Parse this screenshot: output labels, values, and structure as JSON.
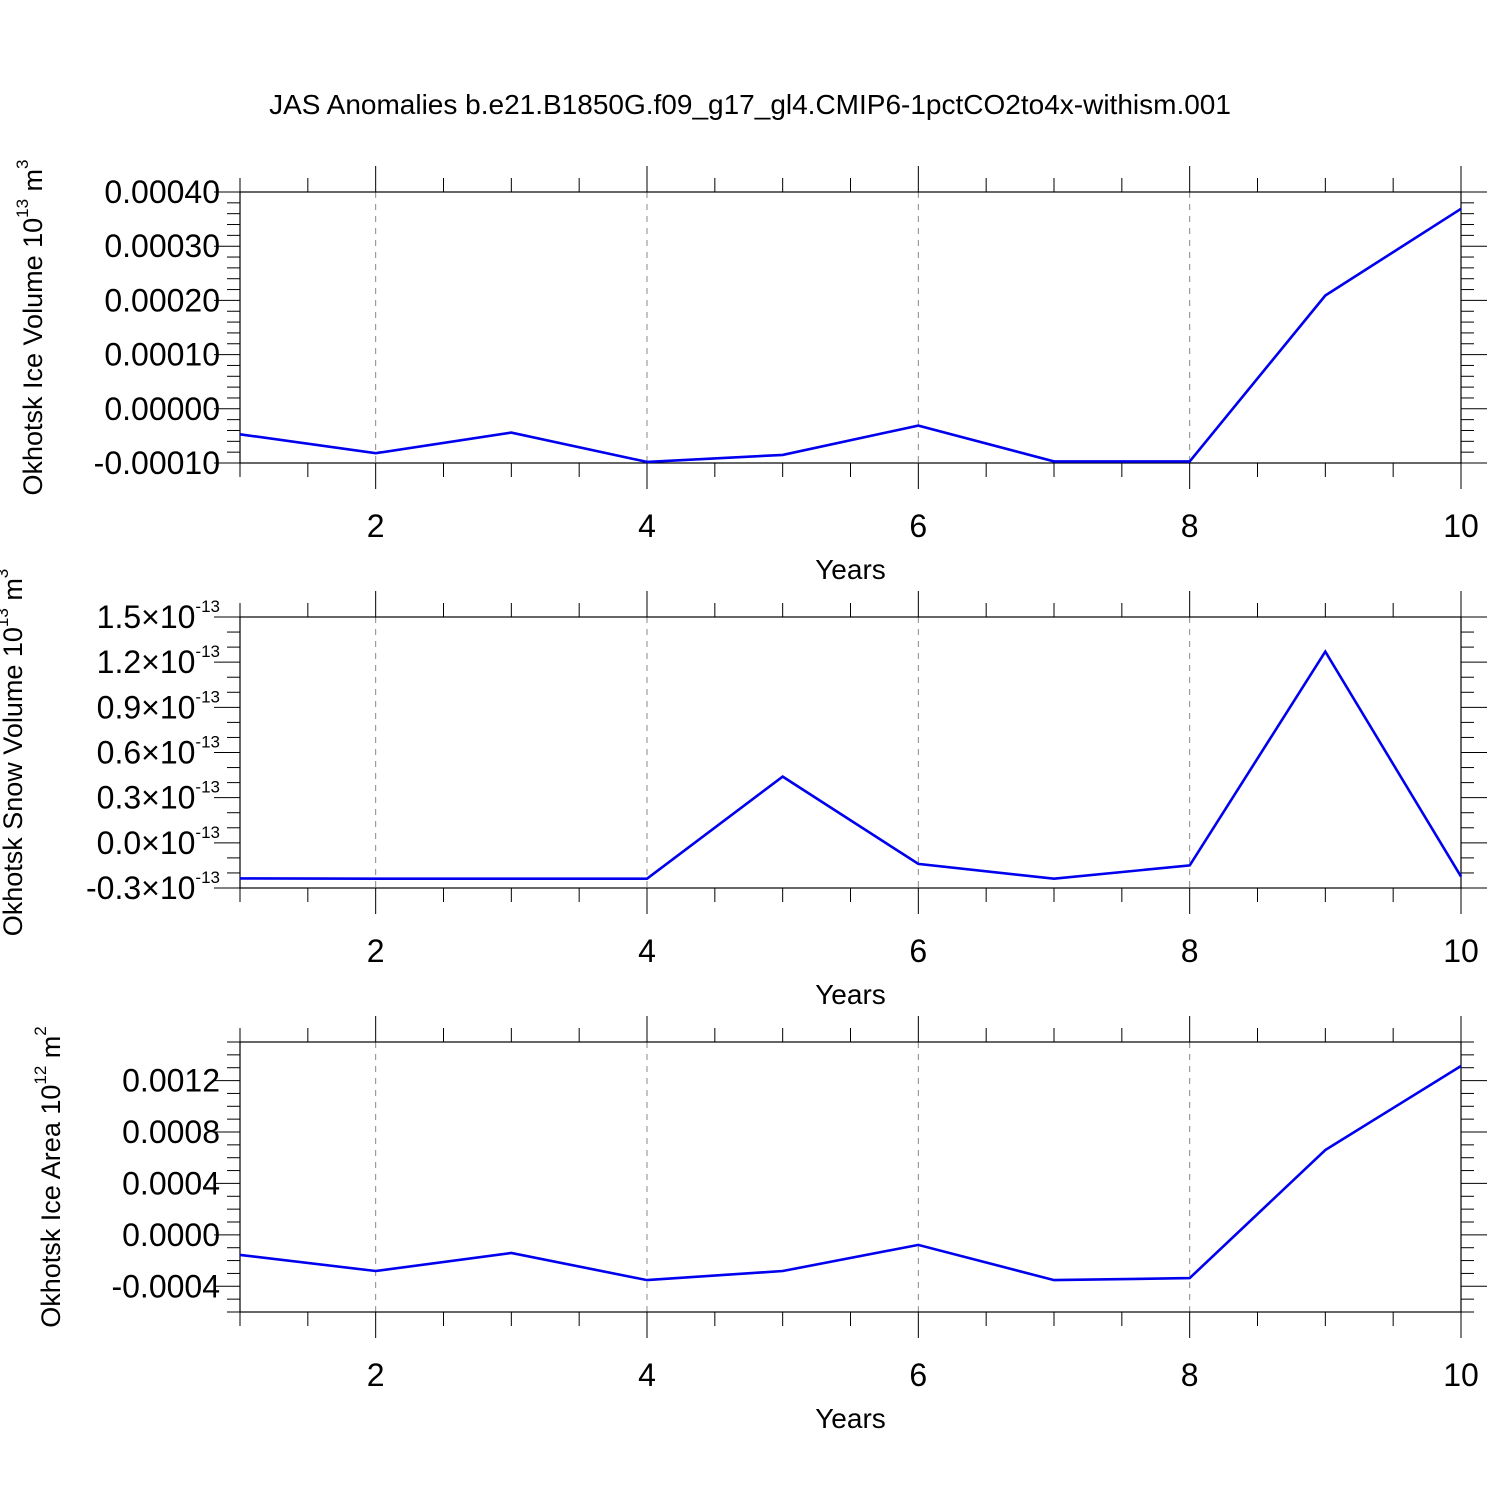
{
  "title": "JAS Anomalies b.e21.B1850G.f09_g17_gl4.CMIP6-1pctCO2to4x-withism.001",
  "chart_data": [
    {
      "type": "line",
      "title": "",
      "xlabel": "Years",
      "ylabel": {
        "base": "Okhotsk Ice Volume 10",
        "exponent": "13",
        "unit": " m",
        "unit_exponent": "3"
      },
      "xlim": [
        1,
        10
      ],
      "ylim": [
        -0.0001,
        0.0004
      ],
      "x_ticks": [
        2,
        4,
        6,
        8,
        10
      ],
      "x_tick_labels": [
        "2",
        "4",
        "6",
        "8",
        "10"
      ],
      "y_ticks": [
        -0.0001,
        0.0,
        0.0001,
        0.0002,
        0.0003,
        0.0004
      ],
      "y_tick_labels": [
        {
          "mantissa": "-0.00010"
        },
        {
          "mantissa": "0.00000"
        },
        {
          "mantissa": "0.00010"
        },
        {
          "mantissa": "0.00020"
        },
        {
          "mantissa": "0.00030"
        },
        {
          "mantissa": "0.00040"
        }
      ],
      "grid": "vertical dashed at major x ticks",
      "series": [
        {
          "color": "#0000ee",
          "x": [
            1,
            2,
            3,
            4,
            5,
            6,
            7,
            8,
            9,
            10
          ],
          "values": [
            -4.7e-05,
            -8.2e-05,
            -4.4e-05,
            -9.8e-05,
            -8.5e-05,
            -3.1e-05,
            -9.7e-05,
            -9.7e-05,
            0.000209,
            0.000369
          ]
        }
      ]
    },
    {
      "type": "line",
      "title": "",
      "xlabel": "Years",
      "ylabel": {
        "base": "Okhotsk Snow Volume 10",
        "exponent": "13",
        "unit": " m",
        "unit_exponent": "3"
      },
      "xlim": [
        1,
        10
      ],
      "ylim": [
        -3e-14,
        1.5e-13
      ],
      "x_ticks": [
        2,
        4,
        6,
        8,
        10
      ],
      "x_tick_labels": [
        "2",
        "4",
        "6",
        "8",
        "10"
      ],
      "y_ticks": [
        -3e-14,
        0.0,
        3e-14,
        6e-14,
        9e-14,
        1.2e-13,
        1.5e-13
      ],
      "y_tick_labels": [
        {
          "mantissa": "-0.3",
          "times": "×",
          "base": "10",
          "exponent": "-13"
        },
        {
          "mantissa": "0.0",
          "times": "×",
          "base": "10",
          "exponent": "-13"
        },
        {
          "mantissa": "0.3",
          "times": "×",
          "base": "10",
          "exponent": "-13"
        },
        {
          "mantissa": "0.6",
          "times": "×",
          "base": "10",
          "exponent": "-13"
        },
        {
          "mantissa": "0.9",
          "times": "×",
          "base": "10",
          "exponent": "-13"
        },
        {
          "mantissa": "1.2",
          "times": "×",
          "base": "10",
          "exponent": "-13"
        },
        {
          "mantissa": "1.5",
          "times": "×",
          "base": "10",
          "exponent": "-13"
        }
      ],
      "grid": "vertical dashed at major x ticks",
      "series": [
        {
          "color": "#0000ee",
          "x": [
            1,
            2,
            3,
            4,
            5,
            6,
            7,
            8,
            9,
            10
          ],
          "values": [
            -2.36e-14,
            -2.38e-14,
            -2.38e-14,
            -2.38e-14,
            4.4e-14,
            -1.4e-14,
            -2.38e-14,
            -1.5e-14,
            1.27e-13,
            -2.24e-14
          ]
        }
      ]
    },
    {
      "type": "line",
      "title": "",
      "xlabel": "Years",
      "ylabel": {
        "base": "Okhotsk Ice Area 10",
        "exponent": "12",
        "unit": " m",
        "unit_exponent": "2"
      },
      "xlim": [
        1,
        10
      ],
      "ylim": [
        -0.0006,
        0.0015
      ],
      "x_ticks": [
        2,
        4,
        6,
        8,
        10
      ],
      "x_tick_labels": [
        "2",
        "4",
        "6",
        "8",
        "10"
      ],
      "y_ticks": [
        -0.0004,
        0.0,
        0.0004,
        0.0008,
        0.0012
      ],
      "y_tick_labels": [
        {
          "mantissa": "-0.0004"
        },
        {
          "mantissa": "0.0000"
        },
        {
          "mantissa": "0.0004"
        },
        {
          "mantissa": "0.0008"
        },
        {
          "mantissa": "0.0012"
        }
      ],
      "grid": "vertical dashed at major x ticks",
      "series": [
        {
          "color": "#0000ee",
          "x": [
            1,
            2,
            3,
            4,
            5,
            6,
            7,
            8,
            9,
            10
          ],
          "values": [
            -0.000156,
            -0.000281,
            -0.000141,
            -0.000352,
            -0.000281,
            -7.8e-05,
            -0.000352,
            -0.000336,
            0.00066,
            0.001313
          ]
        }
      ]
    }
  ]
}
